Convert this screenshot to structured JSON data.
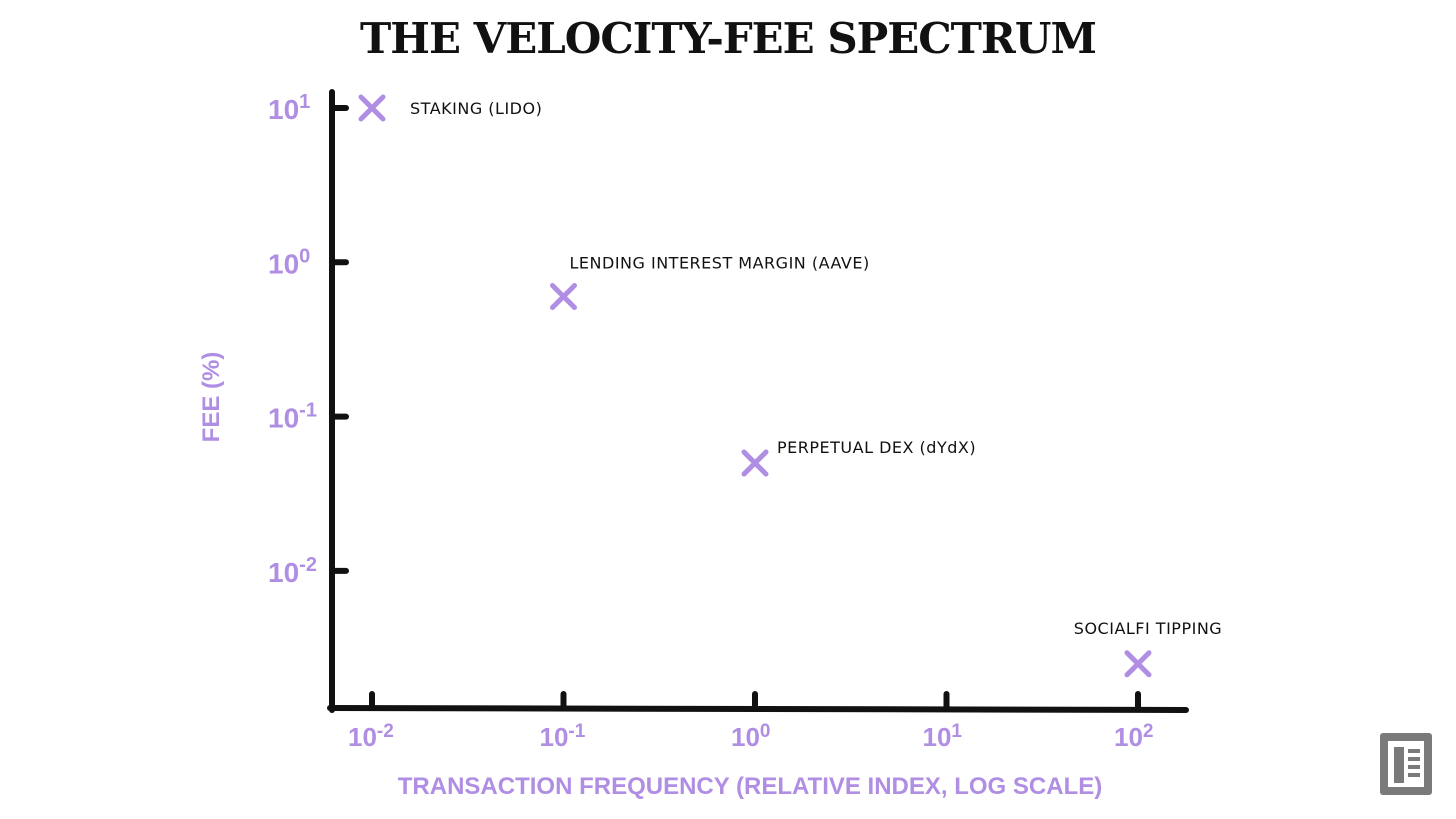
{
  "chart_data": {
    "type": "scatter",
    "title": "THE VELOCITY-FEE SPECTRUM",
    "xlabel": "TRANSACTION FREQUENCY (RELATIVE INDEX, LOG SCALE)",
    "ylabel": "FEE (%)",
    "x_scale": "log",
    "y_scale": "log",
    "x_ticks": [
      {
        "value": 0.01,
        "label": "10",
        "exp": "-2"
      },
      {
        "value": 0.1,
        "label": "10",
        "exp": "-1"
      },
      {
        "value": 1,
        "label": "10",
        "exp": "0"
      },
      {
        "value": 10,
        "label": "10",
        "exp": "1"
      },
      {
        "value": 100,
        "label": "10",
        "exp": "2"
      }
    ],
    "y_ticks": [
      {
        "value": 10,
        "label": "10",
        "exp": "1"
      },
      {
        "value": 1,
        "label": "10",
        "exp": "0"
      },
      {
        "value": 0.1,
        "label": "10",
        "exp": "-1"
      },
      {
        "value": 0.01,
        "label": "10",
        "exp": "-2"
      }
    ],
    "xlim": [
      0.007,
      180
    ],
    "ylim": [
      0.0013,
      14
    ],
    "grid": false,
    "points": [
      {
        "label": "STAKING (LIDO)",
        "x": 0.01,
        "y": 10
      },
      {
        "label": "LENDING INTEREST MARGIN (AAVE)",
        "x": 0.1,
        "y": 0.6
      },
      {
        "label": "PERPETUAL DEX (dYdX)",
        "x": 1,
        "y": 0.05
      },
      {
        "label": "SOCIALFI TIPPING",
        "x": 100,
        "y": 0.0025
      }
    ],
    "colors": {
      "accent": "#b08ee3",
      "axis": "#111111",
      "text": "#111111"
    }
  },
  "logo": {
    "icon": "publisher-logo-icon"
  }
}
